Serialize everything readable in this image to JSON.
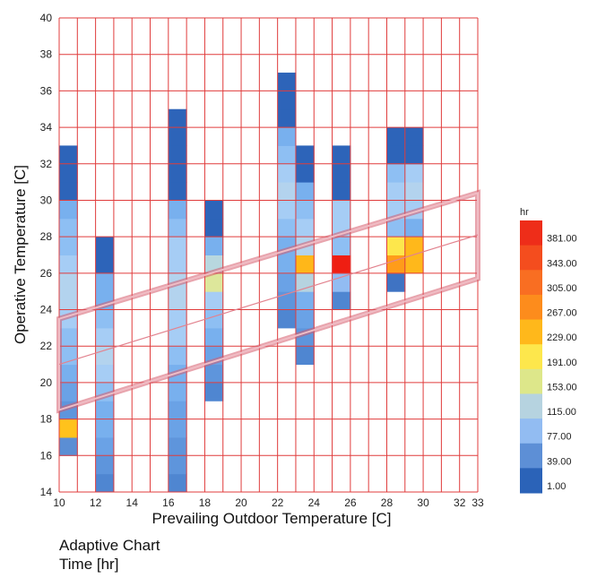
{
  "chart_data": {
    "type": "heatmap",
    "title": "Adaptive Chart",
    "subtitle": "Time [hr]",
    "xlabel": "Prevailing Outdoor Temperature [C]",
    "ylabel": "Operative Temperature [C]",
    "xlim": [
      10,
      33
    ],
    "ylim": [
      14,
      40
    ],
    "x_ticks": [
      "10",
      "12",
      "14",
      "16",
      "18",
      "20",
      "22",
      "24",
      "26",
      "28",
      "30",
      "32",
      "33"
    ],
    "y_ticks": [
      "14",
      "16",
      "18",
      "20",
      "22",
      "24",
      "26",
      "28",
      "30",
      "32",
      "34",
      "36",
      "38",
      "40"
    ],
    "grid": true,
    "x_bin_width": 1,
    "y_bin_height": 1,
    "legend": {
      "unit": "hr",
      "position": "right",
      "labels": [
        "381.00",
        "343.00",
        "305.00",
        "267.00",
        "229.00",
        "191.00",
        "153.00",
        "115.00",
        "77.00",
        "39.00",
        "1.00"
      ],
      "colors": [
        "#ee2d19",
        "#f44d1e",
        "#f96e22",
        "#fd8c1c",
        "#ffb81b",
        "#fde74c",
        "#dde78a",
        "#b6d3e0",
        "#92bcf2",
        "#5d8fd6",
        "#2b63b8"
      ]
    },
    "comfort_band": {
      "x_range": [
        10,
        33
      ],
      "lower": [
        18.5,
        25.7
      ],
      "center": [
        21,
        28.1
      ],
      "upper": [
        23.5,
        30.4
      ]
    },
    "columns": [
      {
        "x": 10,
        "y_range": [
          16,
          33
        ],
        "dark_top": 30,
        "hot": [
          {
            "y": 17,
            "color": "#ffc21c"
          },
          {
            "y": 16,
            "color": "#5b8ed4"
          }
        ]
      },
      {
        "x": 12,
        "y_range": [
          14,
          28
        ],
        "dark_top": 26,
        "hot": []
      },
      {
        "x": 16,
        "y_range": [
          14,
          35
        ],
        "dark_top": 30,
        "hot": []
      },
      {
        "x": 18,
        "y_range": [
          19,
          30
        ],
        "dark_top": 28,
        "hot": [
          {
            "y": 26,
            "color": "#b8d7df"
          },
          {
            "y": 25,
            "color": "#dde79b"
          }
        ]
      },
      {
        "x": 22,
        "y_range": [
          23,
          37
        ],
        "dark_top": 34,
        "hot": []
      },
      {
        "x": 23,
        "y_range": [
          21,
          33
        ],
        "dark_top": 31,
        "hot": [
          {
            "y": 26,
            "color": "#ffb719"
          },
          {
            "y": 25,
            "color": "#b6d3e0"
          }
        ]
      },
      {
        "x": 25,
        "y_range": [
          24,
          33
        ],
        "dark_top": 30,
        "hot": [
          {
            "y": 26,
            "color": "#ef1e12"
          },
          {
            "y": 25,
            "color": "#92bcf2"
          }
        ]
      },
      {
        "x": 28,
        "y_range": [
          25,
          34
        ],
        "dark_top": 32,
        "hot": [
          {
            "y": 27,
            "color": "#fde74c"
          },
          {
            "y": 26,
            "color": "#ff9c1a"
          },
          {
            "y": 25,
            "color": "#3f73c3"
          }
        ]
      },
      {
        "x": 29,
        "y_range": [
          26,
          34
        ],
        "dark_top": 32,
        "hot": [
          {
            "y": 27,
            "color": "#ffb81b"
          },
          {
            "y": 26,
            "color": "#ffb81b"
          }
        ]
      }
    ]
  }
}
